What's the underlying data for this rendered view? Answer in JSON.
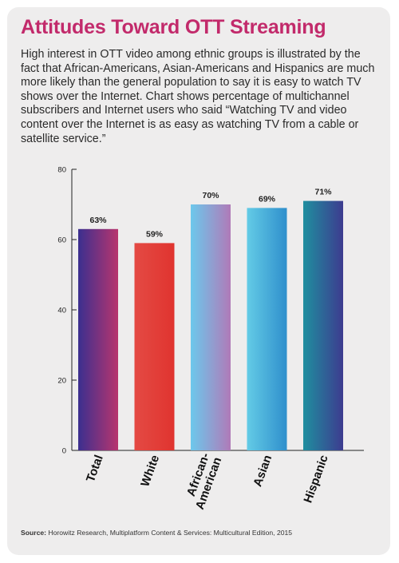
{
  "header": {
    "title": "Attitudes Toward OTT Streaming",
    "description": "High interest in OTT video among ethnic groups is illustrated by the fact that African-Americans, Asian-Americans and Hispanics are much more likely than the general population to say it is easy to watch TV shows over the Internet. Chart shows percentage of multichannel subscribers and Internet users who said “Watching TV and video content over the Internet is as easy as watching TV from a cable or satellite service.”"
  },
  "source": {
    "label": "Source:",
    "text": "Horowitz Research, Multiplatform Content & Services: Multicultural Edition, 2015"
  },
  "colors": {
    "title": "#c22a6b",
    "card_background": "#eeeded",
    "bar_gradients": [
      [
        "#3b2f8f",
        "#b8356e"
      ],
      [
        "#e44a44",
        "#e0342f"
      ],
      [
        "#6cc8ec",
        "#b07ab8"
      ],
      [
        "#63cbe6",
        "#2f8fcc"
      ],
      [
        "#1f8f9f",
        "#3d3b8f"
      ]
    ]
  },
  "chart_data": {
    "type": "bar",
    "categories": [
      "Total",
      "White",
      "African-American",
      "Asian",
      "Hispanic"
    ],
    "category_lines": [
      [
        "Total"
      ],
      [
        "White"
      ],
      [
        "African-",
        "American"
      ],
      [
        "Asian"
      ],
      [
        "Hispanic"
      ]
    ],
    "values": [
      63,
      59,
      70,
      69,
      71
    ],
    "value_labels": [
      "63%",
      "59%",
      "70%",
      "69%",
      "71%"
    ],
    "ylim": [
      0,
      80
    ],
    "yticks": [
      0,
      20,
      40,
      60,
      80
    ],
    "grid": false,
    "legend": "none"
  }
}
